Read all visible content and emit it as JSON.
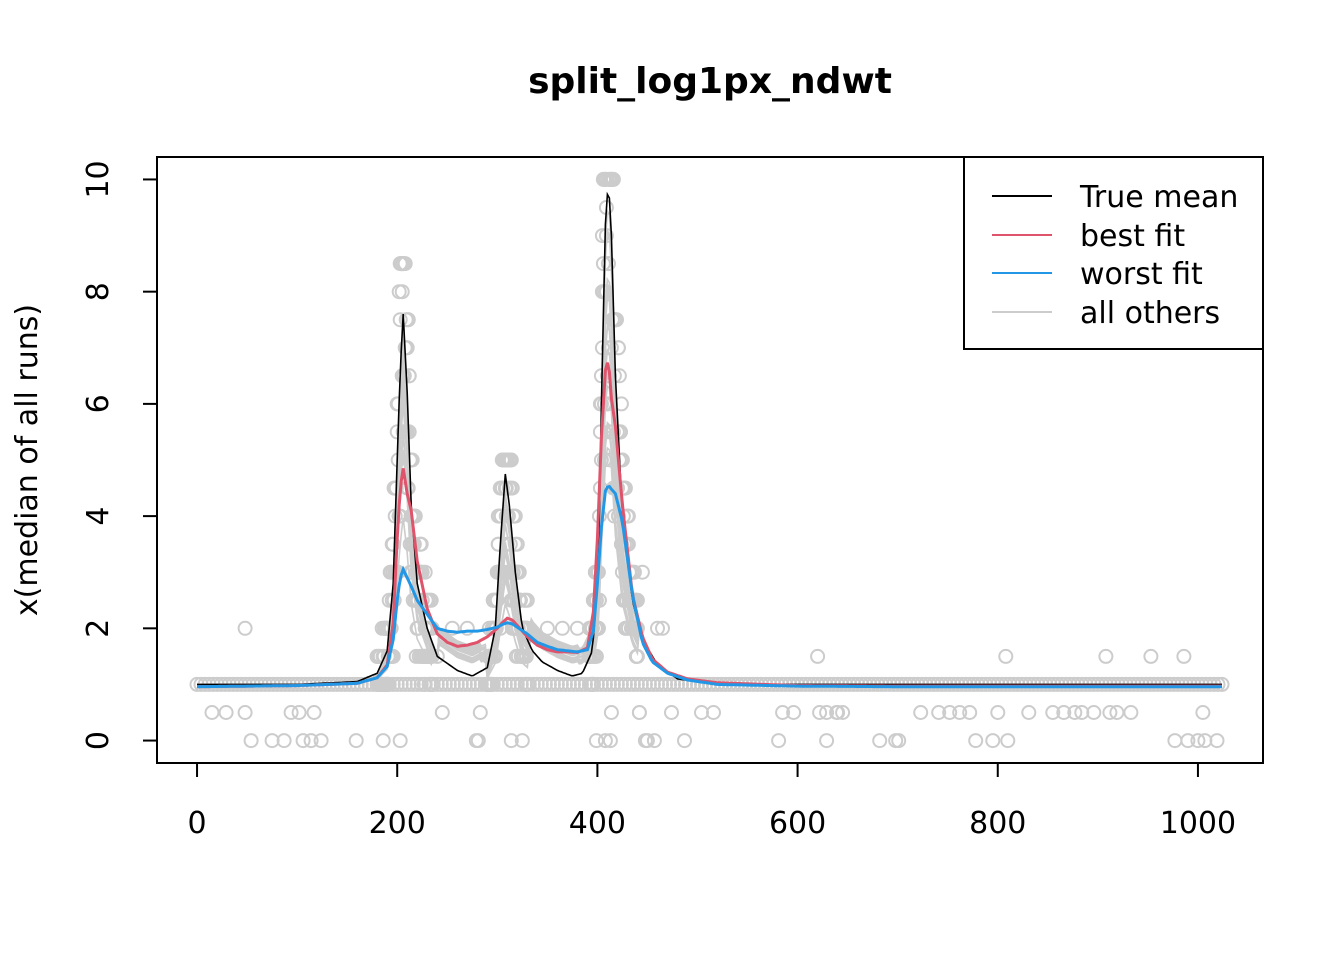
{
  "chart_data": {
    "type": "scatter",
    "title": "split_log1px_ndwt",
    "xlabel": "",
    "ylabel": "x(median of all runs)",
    "xlim": [
      -40,
      1065
    ],
    "ylim": [
      -0.4,
      10.4
    ],
    "xticks": [
      0,
      200,
      400,
      600,
      800,
      1000
    ],
    "yticks": [
      0,
      2,
      4,
      6,
      8,
      10
    ],
    "legend": {
      "position": "top-right",
      "entries": [
        {
          "label": "True mean",
          "color": "#000000"
        },
        {
          "label": "best fit",
          "color": "#DF536B"
        },
        {
          "label": "worst fit",
          "color": "#2297E6"
        },
        {
          "label": "all others",
          "color": "#CCCCCC"
        }
      ]
    },
    "colors": {
      "true_mean": "#000000",
      "best_fit": "#DF536B",
      "worst_fit": "#2297E6",
      "others": "#CCCCCC",
      "points": "#CCCCCC"
    },
    "series": [
      {
        "name": "True mean",
        "color": "#000000",
        "x": [
          0,
          100,
          160,
          180,
          190,
          196,
          200,
          203,
          206,
          210,
          214,
          220,
          230,
          240,
          260,
          275,
          290,
          298,
          303,
          308,
          312,
          318,
          325,
          335,
          345,
          360,
          375,
          385,
          395,
          401,
          404,
          408,
          411,
          414,
          418,
          425,
          435,
          445,
          460,
          480,
          520,
          600,
          700,
          800,
          900,
          1024
        ],
        "y": [
          1,
          1,
          1.05,
          1.2,
          1.6,
          2.8,
          5,
          6.6,
          7.6,
          6.2,
          4.2,
          2.8,
          2.0,
          1.5,
          1.25,
          1.15,
          1.3,
          2.0,
          3.5,
          4.75,
          4.2,
          3.0,
          2.0,
          1.6,
          1.4,
          1.25,
          1.15,
          1.2,
          1.6,
          3.0,
          6.0,
          9.2,
          10.0,
          9.0,
          6.5,
          4.0,
          2.5,
          1.8,
          1.35,
          1.1,
          1.0,
          1.0,
          1.0,
          1.0,
          1.0,
          1.0
        ]
      },
      {
        "name": "best fit",
        "color": "#DF536B",
        "x": [
          0,
          100,
          160,
          180,
          190,
          196,
          200,
          203,
          206,
          210,
          214,
          220,
          230,
          240,
          250,
          260,
          270,
          280,
          290,
          300,
          305,
          310,
          315,
          320,
          330,
          340,
          350,
          360,
          370,
          380,
          390,
          396,
          400,
          404,
          408,
          411,
          414,
          418,
          425,
          435,
          445,
          455,
          470,
          490,
          520,
          600,
          700,
          800,
          900,
          1024
        ],
        "y": [
          0.96,
          0.98,
          1.02,
          1.12,
          1.35,
          2.1,
          3.6,
          4.5,
          4.85,
          4.4,
          4.1,
          3.2,
          2.35,
          1.9,
          1.75,
          1.68,
          1.7,
          1.75,
          1.85,
          2.0,
          2.1,
          2.18,
          2.15,
          2.05,
          1.85,
          1.7,
          1.62,
          1.58,
          1.58,
          1.57,
          1.65,
          2.3,
          3.6,
          5.4,
          6.6,
          6.8,
          6.1,
          5.6,
          4.2,
          2.6,
          1.85,
          1.45,
          1.22,
          1.1,
          1.03,
          0.98,
          0.97,
          0.97,
          0.97,
          0.97
        ]
      },
      {
        "name": "worst fit",
        "color": "#2297E6",
        "x": [
          0,
          100,
          160,
          180,
          190,
          196,
          200,
          203,
          206,
          210,
          214,
          220,
          230,
          240,
          250,
          260,
          270,
          280,
          290,
          300,
          305,
          310,
          315,
          320,
          330,
          340,
          350,
          360,
          370,
          380,
          390,
          396,
          400,
          404,
          408,
          411,
          414,
          418,
          425,
          435,
          445,
          455,
          470,
          490,
          520,
          600,
          700,
          800,
          900,
          1024
        ],
        "y": [
          0.96,
          0.98,
          1.02,
          1.12,
          1.32,
          1.8,
          2.5,
          2.9,
          3.05,
          2.9,
          2.75,
          2.5,
          2.25,
          2.0,
          1.95,
          1.93,
          1.95,
          1.95,
          1.98,
          2.02,
          2.07,
          2.1,
          2.08,
          2.02,
          1.9,
          1.75,
          1.68,
          1.62,
          1.6,
          1.58,
          1.62,
          1.95,
          2.8,
          3.8,
          4.45,
          4.55,
          4.48,
          4.4,
          3.9,
          2.6,
          1.75,
          1.4,
          1.2,
          1.08,
          1.0,
          0.97,
          0.96,
          0.96,
          0.96,
          0.96
        ]
      }
    ],
    "points_summary": "gray circles: baseline at 1 from 0 to 1024, scattered points at 0, 0.5, 1.5, 2 and peaks near 205 (to 8.5), 308 (to 5) and 410 (to 10)"
  }
}
